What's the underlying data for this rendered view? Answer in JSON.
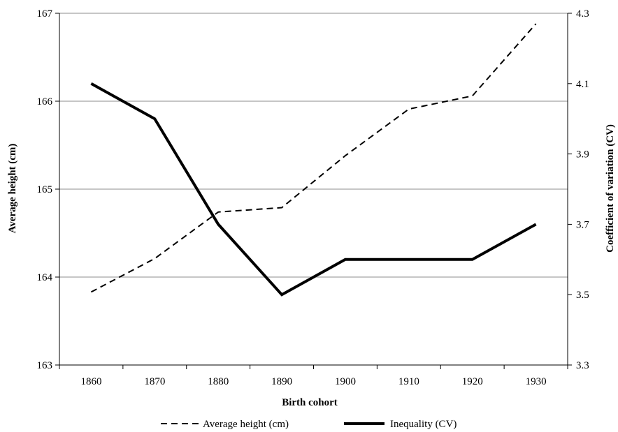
{
  "chart_data": {
    "type": "line",
    "title": "",
    "xlabel": "Birth cohort",
    "ylabel_left": "Average height (cm)",
    "ylabel_right": "Coefficient of variation (CV)",
    "x": [
      1860,
      1870,
      1880,
      1890,
      1900,
      1910,
      1920,
      1930
    ],
    "x_tick_labels": [
      "1860",
      "1870",
      "1880",
      "1890",
      "1900",
      "1910",
      "1920",
      "1930"
    ],
    "ylim_left": [
      163,
      167
    ],
    "ylim_right": [
      3.3,
      4.3
    ],
    "y_ticks_left": [
      "163",
      "164",
      "165",
      "166",
      "167"
    ],
    "y_ticks_right": [
      "3.3",
      "3.5",
      "3.7",
      "3.9",
      "4.1",
      "4.3"
    ],
    "grid": true,
    "legend_position": "bottom",
    "series": [
      {
        "name": "Average height (cm)",
        "axis": "left",
        "style": "dashed",
        "color": "#000000",
        "values": [
          163.83,
          164.21,
          164.74,
          164.79,
          165.38,
          165.91,
          166.06,
          166.88
        ]
      },
      {
        "name": "Inequality (CV)",
        "axis": "right",
        "style": "solid",
        "color": "#000000",
        "values": [
          4.1,
          4.0,
          3.7,
          3.5,
          3.6,
          3.6,
          3.6,
          3.7
        ]
      }
    ]
  }
}
